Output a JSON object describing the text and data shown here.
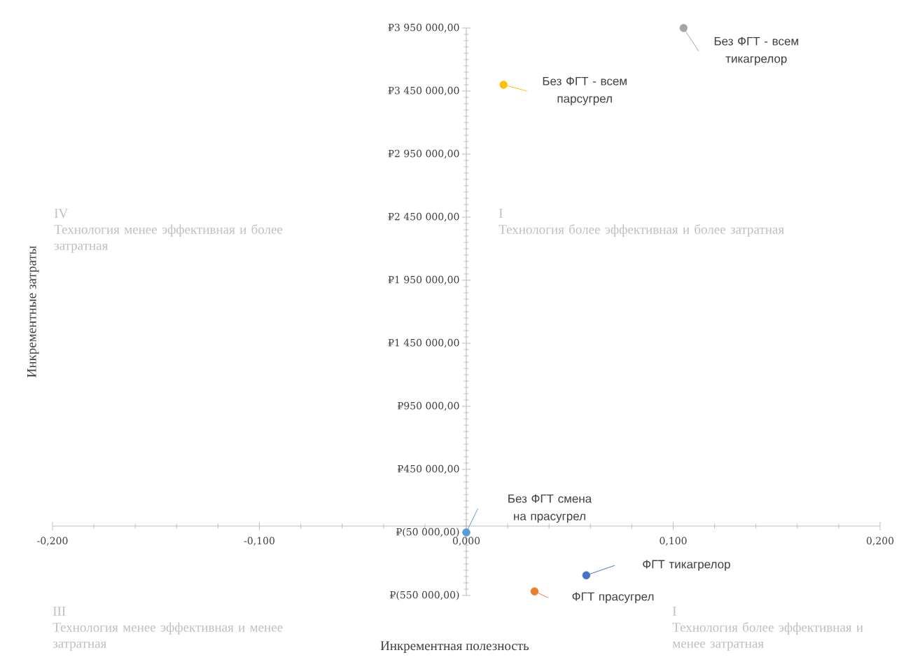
{
  "chart_data": {
    "type": "scatter",
    "xlabel": "Инкрементная полезность",
    "ylabel": "Инкрементные затраты",
    "xlim": [
      -0.2,
      0.2
    ],
    "ylim": [
      -550000,
      3950000
    ],
    "xticks": [
      {
        "value": -0.2,
        "label": "-0,200"
      },
      {
        "value": -0.1,
        "label": "-0,100"
      },
      {
        "value": 0,
        "label": "0,000"
      },
      {
        "value": 0.1,
        "label": "0,100"
      },
      {
        "value": 0.2,
        "label": "0,200"
      }
    ],
    "yticks": [
      {
        "value": -550000,
        "label": "₽(550 000,00)"
      },
      {
        "value": -50000,
        "label": "₽(50 000,00)"
      },
      {
        "value": 450000,
        "label": "₽450 000,00"
      },
      {
        "value": 950000,
        "label": "₽950 000,00"
      },
      {
        "value": 1450000,
        "label": "₽1 450 000,00"
      },
      {
        "value": 1950000,
        "label": "₽1 950 000,00"
      },
      {
        "value": 2450000,
        "label": "₽2 450 000,00"
      },
      {
        "value": 2950000,
        "label": "₽2 950 000,00"
      },
      {
        "value": 3450000,
        "label": "₽3 450 000,00"
      },
      {
        "value": 3950000,
        "label": "₽3 950 000,00"
      }
    ],
    "marker": "circle",
    "grid": false,
    "legend": "right",
    "series": [
      {
        "name": "Без ФГТ - всем тикагрелор",
        "color": "#a5a5a5",
        "x": [
          0.105
        ],
        "values": [
          3950000
        ]
      },
      {
        "name": "Без ФГТ - всем парсугрел",
        "color": "#ffc000",
        "x": [
          0.018
        ],
        "values": [
          3500000
        ]
      },
      {
        "name": "Без ФГТ смена на прасугрел",
        "color": "#5b9bd5",
        "x": [
          0.0
        ],
        "values": [
          -50000
        ]
      },
      {
        "name": "ФГТ тикагрелор",
        "color": "#4472c4",
        "x": [
          0.058
        ],
        "values": [
          -390000
        ]
      },
      {
        "name": "ФГТ прасугрел",
        "color": "#ed7d31",
        "x": [
          0.033
        ],
        "values": [
          -518000
        ]
      }
    ],
    "annotations": [
      "IV",
      "Технология менее эффективная и более затратная",
      "I",
      "Технология более эффективная и более затратная",
      "III",
      "Технология менее эффективная и менее затратная",
      "I",
      "Технология более эффективная и менее затратная"
    ]
  }
}
